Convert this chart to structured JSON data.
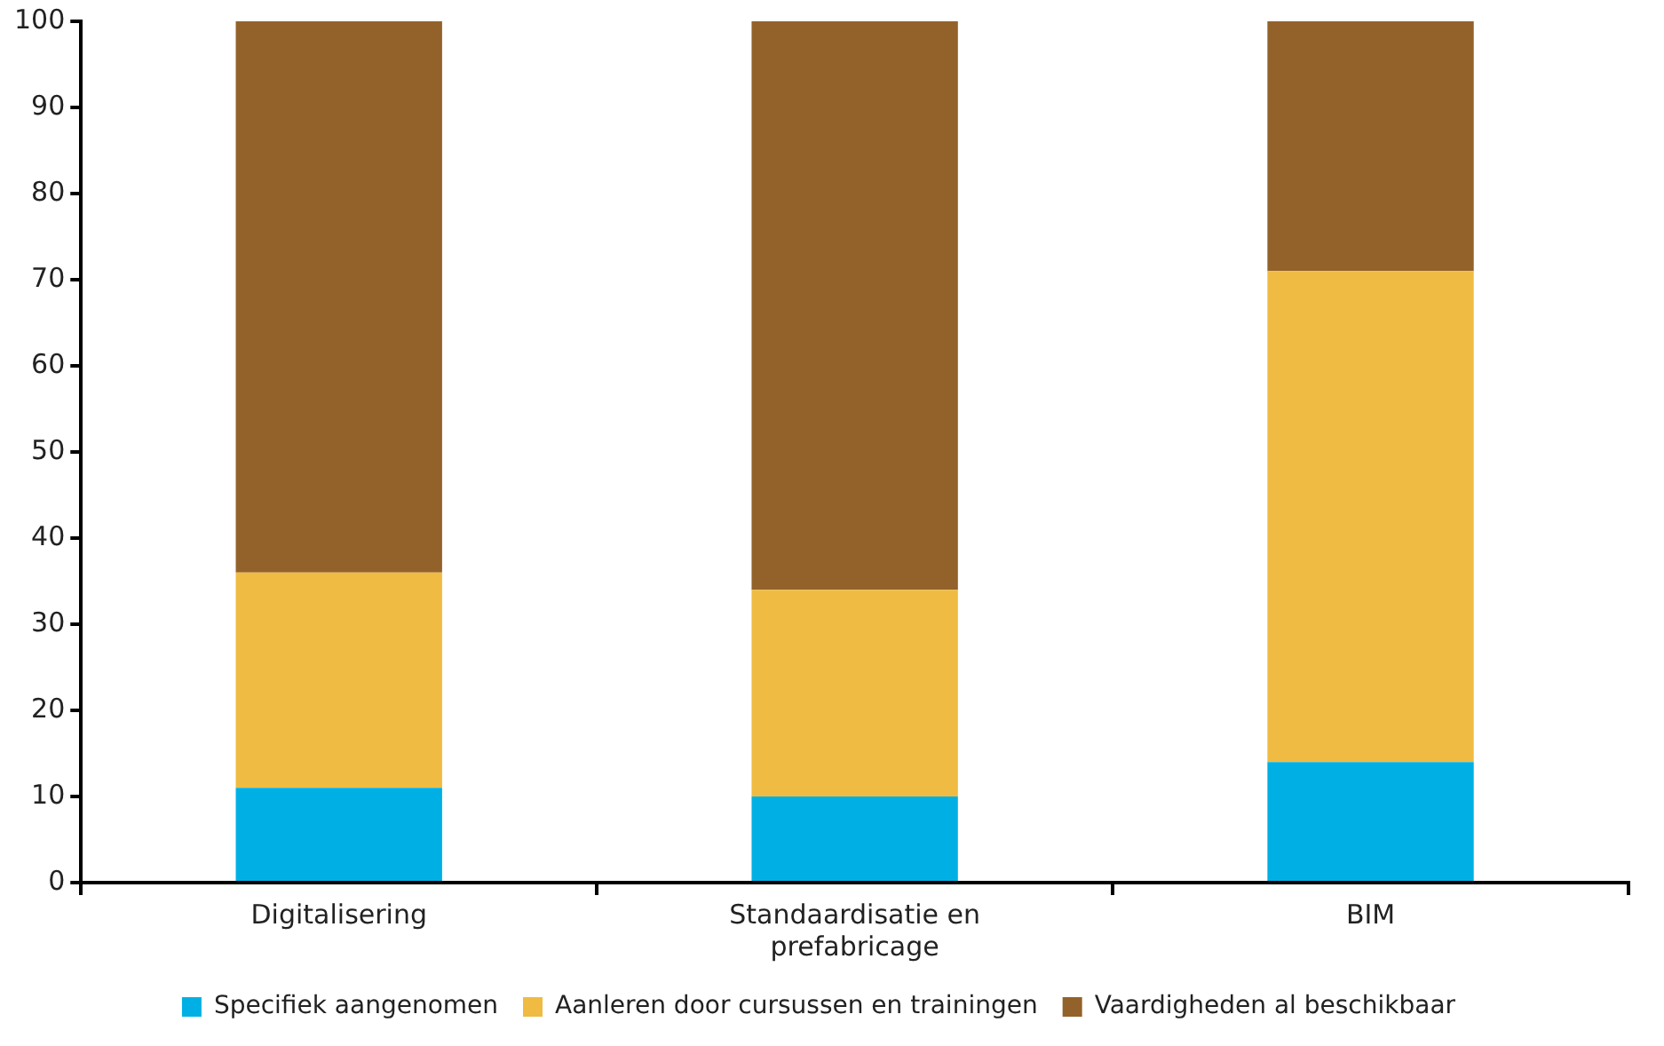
{
  "chart_data": {
    "type": "bar",
    "stacked": true,
    "categories": [
      "Digitalisering",
      "Standaardisatie en prefabricage",
      "BIM"
    ],
    "series": [
      {
        "name": "Specifiek aangenomen",
        "color": "#00b0e4",
        "values": [
          11,
          10,
          14
        ]
      },
      {
        "name": "Aanleren door cursussen en trainingen",
        "color": "#efbb42",
        "values": [
          25,
          24,
          57
        ]
      },
      {
        "name": "Vaardigheden al beschikbaar",
        "color": "#93622a",
        "values": [
          64,
          66,
          29
        ]
      }
    ],
    "ylim": [
      0,
      100
    ],
    "yticks": [
      0,
      10,
      20,
      30,
      40,
      50,
      60,
      70,
      80,
      90,
      100
    ],
    "grid": false,
    "legend": "bottom"
  }
}
